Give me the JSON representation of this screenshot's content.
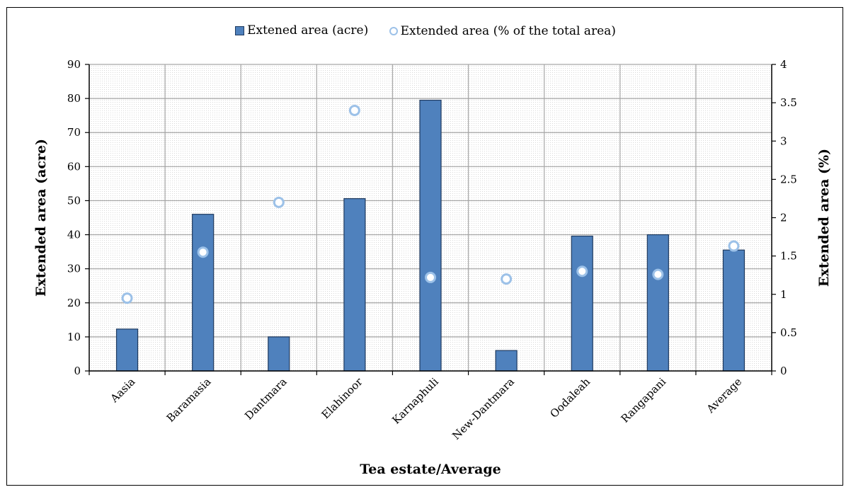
{
  "chart_data": {
    "type": "bar",
    "categories": [
      "Aasia",
      "Baramasia",
      "Dantmara",
      "Elahinoor",
      "Karnaphuli",
      "New-Dantmara",
      "Oodaleah",
      "Rangapani",
      "Average"
    ],
    "series": [
      {
        "name": "Extened area (acre)",
        "type": "bar",
        "axis": "left",
        "color": "#4f81bd",
        "values": [
          12.3,
          46.0,
          10.0,
          50.6,
          79.5,
          6.0,
          39.6,
          40.0,
          35.5
        ]
      },
      {
        "name": "Extended area (% of the total area)",
        "type": "scatter",
        "axis": "right",
        "color": "#9cc1e8",
        "values": [
          0.95,
          1.55,
          2.2,
          3.4,
          1.22,
          1.2,
          1.3,
          1.26,
          1.63
        ]
      }
    ],
    "xlabel": "Tea estate/Average",
    "ylabel": "Extended area (acre)",
    "ylabel_right": "Extended area (%)",
    "ylim": [
      0,
      90
    ],
    "ylim_right": [
      0,
      4
    ],
    "yticks": [
      "0",
      "10",
      "20",
      "30",
      "40",
      "50",
      "60",
      "70",
      "80",
      "90"
    ],
    "yticks_right": [
      "0",
      "0.5",
      "1",
      "1.5",
      "2",
      "2.5",
      "3",
      "3.5",
      "4"
    ],
    "grid": true,
    "legend": "top"
  }
}
